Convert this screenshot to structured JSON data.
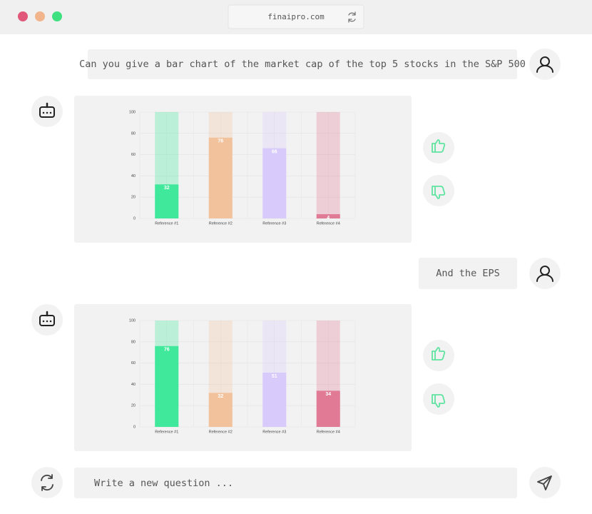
{
  "browser": {
    "url": "finaipro.com"
  },
  "messages": [
    "Can you give a bar chart of the market cap of the top 5 stocks in the S&P 500",
    "And the EPS"
  ],
  "input_placeholder": "Write a new question ...",
  "chart_data": [
    {
      "type": "bar",
      "categories": [
        "Reference #1",
        "Reference #2",
        "Reference #3",
        "Reference #4"
      ],
      "values": [
        32,
        76,
        66,
        4
      ],
      "colors": [
        "#3fe89a",
        "#f2c29c",
        "#d8cafb",
        "#e07a95"
      ],
      "ylim": [
        0,
        100
      ],
      "yticks": [
        0,
        20,
        40,
        60,
        80,
        100
      ],
      "grid": true
    },
    {
      "type": "bar",
      "categories": [
        "Reference #1",
        "Reference #2",
        "Reference #3",
        "Reference #4"
      ],
      "values": [
        76,
        32,
        51,
        34
      ],
      "colors": [
        "#3fe89a",
        "#f2c29c",
        "#d8cafb",
        "#e07a95"
      ],
      "ylim": [
        0,
        100
      ],
      "yticks": [
        0,
        20,
        40,
        60,
        80,
        100
      ],
      "grid": true
    }
  ]
}
